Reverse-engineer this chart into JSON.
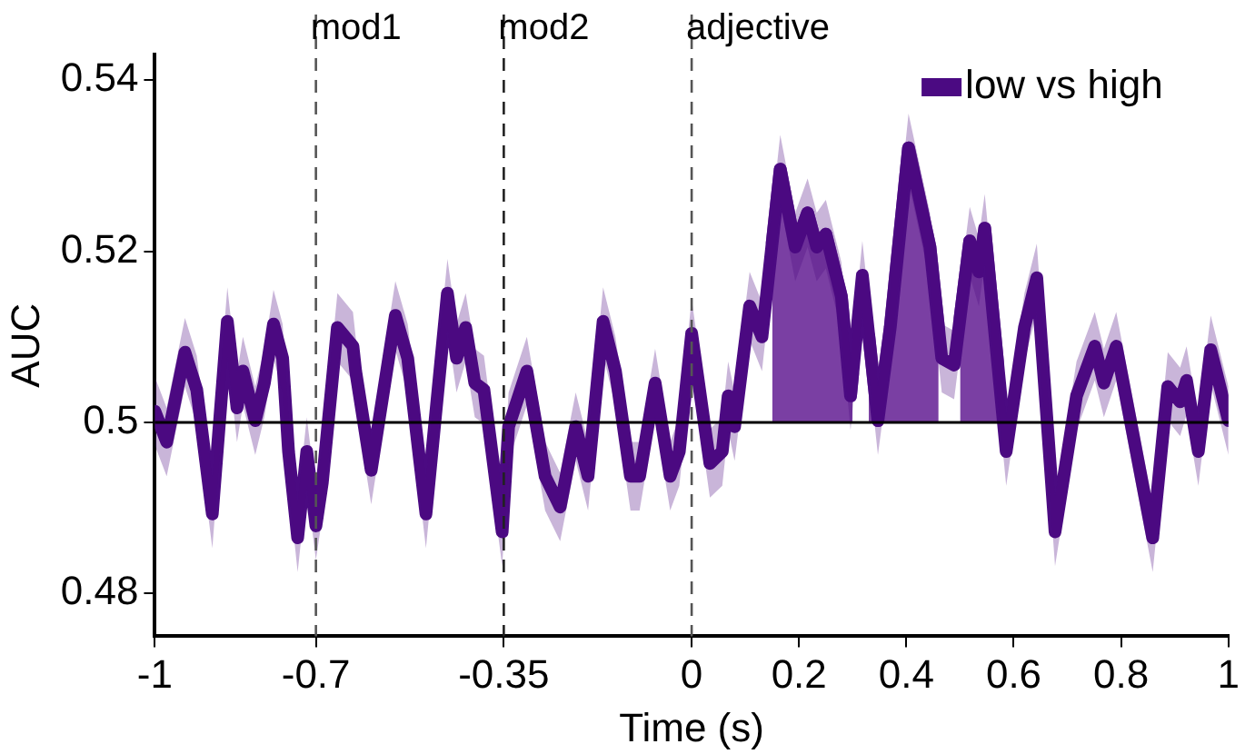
{
  "chart_data": {
    "type": "line",
    "xlabel": "Time (s)",
    "ylabel": "AUC",
    "x": [
      -1.0,
      -0.978,
      -0.944,
      -0.922,
      -0.893,
      -0.865,
      -0.847,
      -0.836,
      -0.813,
      -0.796,
      -0.779,
      -0.762,
      -0.751,
      -0.734,
      -0.717,
      -0.7,
      -0.688,
      -0.66,
      -0.631,
      -0.626,
      -0.597,
      -0.552,
      -0.529,
      -0.495,
      -0.455,
      -0.438,
      -0.421,
      -0.404,
      -0.387,
      -0.353,
      -0.341,
      -0.307,
      -0.273,
      -0.245,
      -0.216,
      -0.193,
      -0.165,
      -0.142,
      -0.114,
      -0.097,
      -0.068,
      -0.04,
      -0.023,
      0.0,
      0.034,
      0.057,
      0.068,
      0.08,
      0.108,
      0.131,
      0.165,
      0.193,
      0.216,
      0.233,
      0.25,
      0.279,
      0.296,
      0.318,
      0.347,
      0.37,
      0.404,
      0.444,
      0.466,
      0.489,
      0.518,
      0.535,
      0.546,
      0.586,
      0.62,
      0.643,
      0.677,
      0.717,
      0.751,
      0.768,
      0.791,
      0.859,
      0.887,
      0.91,
      0.922,
      0.944,
      0.967,
      1.0
    ],
    "series": [
      {
        "name": "low vs high",
        "color": "#4b0a82",
        "values": [
          0.5013,
          0.4977,
          0.5082,
          0.5038,
          0.4893,
          0.5118,
          0.5017,
          0.506,
          0.5002,
          0.5046,
          0.5115,
          0.5075,
          0.4966,
          0.4865,
          0.4966,
          0.4879,
          0.493,
          0.5111,
          0.5089,
          0.506,
          0.4944,
          0.5125,
          0.5075,
          0.4893,
          0.5151,
          0.5075,
          0.5111,
          0.5046,
          0.5038,
          0.4872,
          0.4995,
          0.506,
          0.4937,
          0.4901,
          0.4995,
          0.4937,
          0.5118,
          0.506,
          0.4937,
          0.4937,
          0.5046,
          0.4937,
          0.4966,
          0.5104,
          0.4952,
          0.4966,
          0.5031,
          0.4995,
          0.5136,
          0.51,
          0.5296,
          0.5205,
          0.5245,
          0.5205,
          0.522,
          0.5147,
          0.5031,
          0.5172,
          0.5002,
          0.5111,
          0.5321,
          0.5205,
          0.5075,
          0.5067,
          0.5212,
          0.5176,
          0.5227,
          0.4966,
          0.5111,
          0.5169,
          0.4872,
          0.5031,
          0.5089,
          0.5046,
          0.5089,
          0.4865,
          0.5042,
          0.5024,
          0.5049,
          0.4966,
          0.5085,
          0.5002
        ],
        "lower": [
          0.4973,
          0.4937,
          0.5042,
          0.4998,
          0.4853,
          0.5078,
          0.4977,
          0.502,
          0.4962,
          0.5006,
          0.5075,
          0.5035,
          0.4926,
          0.4825,
          0.4926,
          0.4839,
          0.489,
          0.5071,
          0.5049,
          0.502,
          0.4904,
          0.5085,
          0.5035,
          0.4853,
          0.5111,
          0.5035,
          0.5071,
          0.5006,
          0.4998,
          0.4832,
          0.4955,
          0.502,
          0.4897,
          0.4861,
          0.4955,
          0.4897,
          0.5078,
          0.502,
          0.4897,
          0.4897,
          0.5006,
          0.4897,
          0.4926,
          0.5064,
          0.4912,
          0.4926,
          0.4991,
          0.4955,
          0.5096,
          0.506,
          0.5256,
          0.5165,
          0.5205,
          0.5165,
          0.518,
          0.5107,
          0.4991,
          0.5132,
          0.4962,
          0.5071,
          0.5281,
          0.5165,
          0.5035,
          0.5027,
          0.5172,
          0.5136,
          0.5187,
          0.4926,
          0.5071,
          0.5129,
          0.4832,
          0.4991,
          0.5049,
          0.5006,
          0.5049,
          0.4825,
          0.5002,
          0.4984,
          0.5009,
          0.4926,
          0.5045,
          0.4962
        ],
        "upper": [
          0.5053,
          0.5017,
          0.5122,
          0.5078,
          0.4933,
          0.5158,
          0.5057,
          0.51,
          0.5042,
          0.5086,
          0.5155,
          0.5115,
          0.5006,
          0.4905,
          0.5006,
          0.4919,
          0.497,
          0.5151,
          0.5129,
          0.51,
          0.4984,
          0.5165,
          0.5115,
          0.4933,
          0.5191,
          0.5115,
          0.5151,
          0.5086,
          0.5078,
          0.4912,
          0.5035,
          0.51,
          0.4977,
          0.4941,
          0.5035,
          0.4977,
          0.5158,
          0.51,
          0.4977,
          0.4977,
          0.5086,
          0.4977,
          0.5006,
          0.5144,
          0.4992,
          0.5006,
          0.5071,
          0.5035,
          0.5176,
          0.514,
          0.5336,
          0.5245,
          0.5285,
          0.5245,
          0.526,
          0.5187,
          0.5071,
          0.5212,
          0.5042,
          0.5151,
          0.5361,
          0.5245,
          0.5115,
          0.5107,
          0.5252,
          0.5216,
          0.5267,
          0.5006,
          0.5151,
          0.5209,
          0.4912,
          0.5071,
          0.5129,
          0.5086,
          0.5129,
          0.4905,
          0.5082,
          0.5064,
          0.5089,
          0.5006,
          0.5125,
          0.5042
        ]
      },
      {
        "type": "area",
        "color": "#7a3fa3",
        "x": [
          0.15,
          0.165,
          0.193,
          0.216,
          0.233,
          0.25,
          0.279,
          0.296,
          0.3
        ],
        "values": [
          0.521,
          0.5296,
          0.5205,
          0.5245,
          0.5205,
          0.522,
          0.5147,
          0.5031,
          0.5057
        ]
      },
      {
        "type": "area",
        "color": "#7a3fa3",
        "x": [
          0.33,
          0.347,
          0.37,
          0.404,
          0.444,
          0.46
        ],
        "values": [
          0.5101,
          0.5002,
          0.5111,
          0.5321,
          0.5205,
          0.511
        ]
      },
      {
        "type": "area",
        "color": "#7a3fa3",
        "x": [
          0.5,
          0.518,
          0.535,
          0.546,
          0.57
        ],
        "values": [
          0.5122,
          0.5212,
          0.5176,
          0.5227,
          0.507
        ]
      }
    ],
    "xlim": [
      -1,
      1
    ],
    "xticks": [
      -1,
      -0.7,
      -0.35,
      0,
      0.2,
      0.4,
      0.6,
      0.8,
      1
    ],
    "ylim": [
      0.475,
      0.543
    ],
    "yticks": [
      0.48,
      0.5,
      0.52,
      0.54
    ],
    "ref_lines": [
      {
        "axis": "x",
        "value": -0.7,
        "label": "mod1",
        "color": "#555555",
        "line_style": "dashed"
      },
      {
        "axis": "x",
        "value": -0.35,
        "label": "mod2",
        "color": "#222222",
        "line_style": "dashed"
      },
      {
        "axis": "x",
        "value": 0,
        "label": "adjective",
        "color": "#555555",
        "line_style": "dashed"
      },
      {
        "axis": "y",
        "value": 0.5,
        "color": "#000000",
        "line_style": "solid"
      }
    ],
    "legend": "top right",
    "grid": false,
    "marker": "none",
    "line_style": "solid"
  }
}
